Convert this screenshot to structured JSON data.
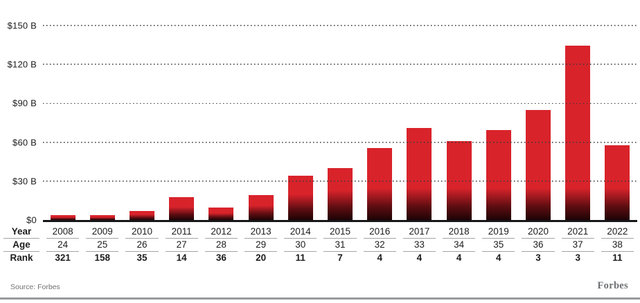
{
  "chart_data": {
    "type": "bar",
    "title": "",
    "xlabel": "",
    "ylabel": "",
    "categories": [
      "2008",
      "2009",
      "2010",
      "2011",
      "2012",
      "2013",
      "2014",
      "2015",
      "2016",
      "2017",
      "2018",
      "2019",
      "2020",
      "2021",
      "2022"
    ],
    "values": [
      1.5,
      2,
      7,
      17.5,
      9.4,
      19,
      34,
      40,
      55.5,
      71,
      61,
      69.6,
      85,
      134.5,
      57.7
    ],
    "ylim": [
      0,
      150
    ],
    "yticks": [
      {
        "value": 150,
        "label": "$150 B"
      },
      {
        "value": 120,
        "label": "$120 B"
      },
      {
        "value": 90,
        "label": "$90 B"
      },
      {
        "value": 60,
        "label": "$60 B"
      },
      {
        "value": 30,
        "label": "$30 B"
      },
      {
        "value": 0,
        "label": "$0"
      }
    ],
    "grid": "horizontal-dotted",
    "legend": "none",
    "colors": {
      "bar_red": "#D9232B",
      "bar_fade_dark": "#1D0305"
    }
  },
  "table": {
    "rows": [
      {
        "key": "year",
        "label": "Year",
        "bold_values": false,
        "values": [
          "2008",
          "2009",
          "2010",
          "2011",
          "2012",
          "2013",
          "2014",
          "2015",
          "2016",
          "2017",
          "2018",
          "2019",
          "2020",
          "2021",
          "2022"
        ]
      },
      {
        "key": "age",
        "label": "Age",
        "bold_values": false,
        "values": [
          "24",
          "25",
          "26",
          "27",
          "28",
          "29",
          "30",
          "31",
          "32",
          "33",
          "34",
          "35",
          "36",
          "37",
          "38"
        ]
      },
      {
        "key": "rank",
        "label": "Rank",
        "bold_values": true,
        "values": [
          "321",
          "158",
          "35",
          "14",
          "36",
          "20",
          "11",
          "7",
          "4",
          "4",
          "4",
          "4",
          "3",
          "3",
          "11"
        ]
      }
    ]
  },
  "footer": {
    "source": "Source: Forbes",
    "logo": "Forbes"
  }
}
